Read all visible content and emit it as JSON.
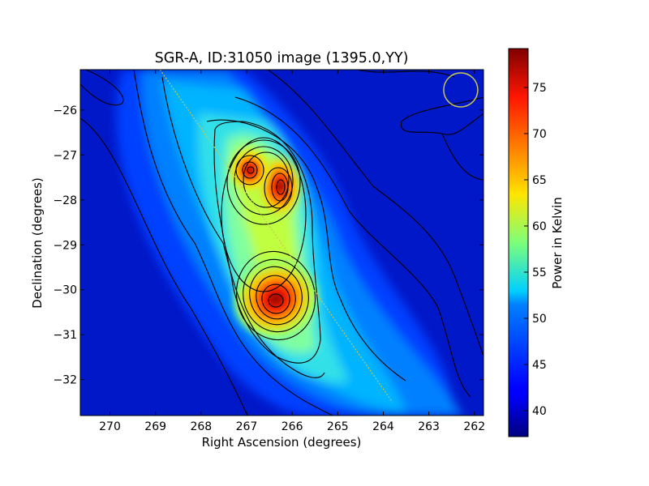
{
  "chart_data": {
    "type": "heatmap",
    "title": "SGR-A, ID:31050 image (1395.0,YY)",
    "xlabel": "Right Ascension (degrees)",
    "ylabel": "Declination (degrees)",
    "colorbar_label": "Power in Kelvin",
    "colormap": "jet",
    "xlim": [
      270.65,
      261.8
    ],
    "ylim": [
      -32.8,
      -25.1
    ],
    "x_ticks": [
      {
        "value": 270,
        "label": "270"
      },
      {
        "value": 269,
        "label": "269"
      },
      {
        "value": 268,
        "label": "268"
      },
      {
        "value": 267,
        "label": "267"
      },
      {
        "value": 266,
        "label": "266"
      },
      {
        "value": 265,
        "label": "265"
      },
      {
        "value": 264,
        "label": "264"
      },
      {
        "value": 263,
        "label": "263"
      },
      {
        "value": 262,
        "label": "262"
      }
    ],
    "y_ticks": [
      {
        "value": -26,
        "label": "−26"
      },
      {
        "value": -27,
        "label": "−27"
      },
      {
        "value": -28,
        "label": "−28"
      },
      {
        "value": -29,
        "label": "−29"
      },
      {
        "value": -30,
        "label": "−30"
      },
      {
        "value": -31,
        "label": "−31"
      },
      {
        "value": -32,
        "label": "−32"
      }
    ],
    "colorbar_range": [
      37.2,
      79.2
    ],
    "colorbar_ticks": [
      {
        "value": 40,
        "label": "40"
      },
      {
        "value": 45,
        "label": "45"
      },
      {
        "value": 50,
        "label": "50"
      },
      {
        "value": 55,
        "label": "55"
      },
      {
        "value": 60,
        "label": "60"
      },
      {
        "value": 65,
        "label": "65"
      },
      {
        "value": 70,
        "label": "70"
      },
      {
        "value": 75,
        "label": "75"
      }
    ],
    "background_level": 41,
    "peaks": [
      {
        "name": "south",
        "ra": 266.4,
        "dec": -30.28,
        "value": 79
      },
      {
        "name": "north-east",
        "ra": 266.28,
        "dec": -27.75,
        "value": 76
      },
      {
        "name": "north-west",
        "ra": 266.85,
        "dec": -27.38,
        "value": 74
      }
    ],
    "galactic_plane_line": {
      "start": [
        268.9,
        -25.1
      ],
      "end": [
        263.8,
        -32.5
      ]
    },
    "beam_circle": {
      "ra": 262.3,
      "dec": -25.55
    }
  }
}
